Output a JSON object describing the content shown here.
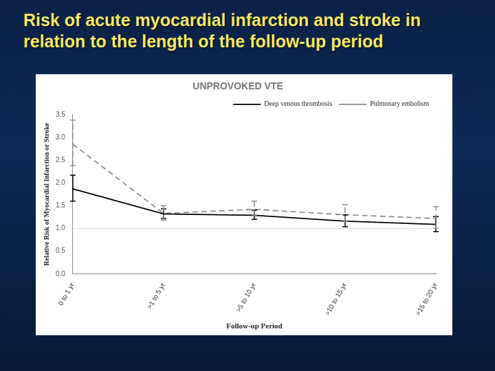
{
  "chart_data": {
    "type": "line",
    "title": "Risk of acute myocardial infarction and stroke in relation to the length of the follow-up period",
    "subtitle": "UNPROVOKED VTE",
    "x_label": "Follow-up Period",
    "y_label": "Relative Risk of Myocardial Infarction or Stroke",
    "categories": [
      "0 to 1 yr",
      ">1 to 5 yr",
      ">5 to 10 yr",
      ">10 to 15 yr",
      ">15 to 20 yr"
    ],
    "series": [
      {
        "name": "Deep venous thrombosis",
        "color": "#000000",
        "line_style": "solid",
        "values": [
          1.87,
          1.32,
          1.29,
          1.16,
          1.09
        ],
        "error_low": [
          1.6,
          1.22,
          1.2,
          1.04,
          0.93
        ],
        "error_high": [
          2.17,
          1.43,
          1.4,
          1.3,
          1.26
        ]
      },
      {
        "name": "Pulmonary embolism",
        "color": "#8c8c8c",
        "line_style": "dashed",
        "values": [
          2.85,
          1.33,
          1.42,
          1.3,
          1.22
        ],
        "error_low": [
          2.38,
          1.18,
          1.28,
          1.15,
          1.0
        ],
        "error_high": [
          3.38,
          1.5,
          1.6,
          1.52,
          1.48
        ]
      }
    ],
    "reference_line": 1,
    "ylim": [
      0,
      3.5
    ],
    "yticks": [
      {
        "value": 0,
        "label": "0.0"
      },
      0.5,
      {
        "value": 1,
        "label": "1.0"
      },
      1.5,
      {
        "value": 2,
        "label": "2.0"
      },
      2.5,
      {
        "value": 3,
        "label": "3.0"
      },
      3.5
    ],
    "grid": false,
    "legend": "top-right"
  }
}
